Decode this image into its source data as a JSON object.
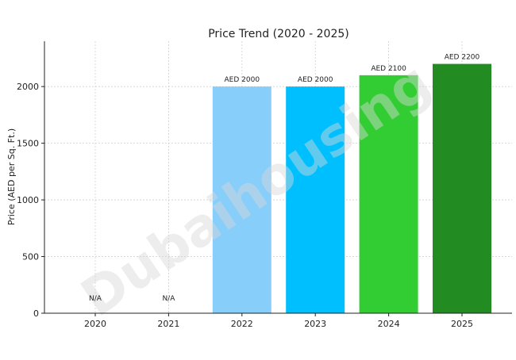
{
  "chart_data": {
    "type": "bar",
    "title": "Price Trend (2020 - 2025)",
    "xlabel": "",
    "ylabel": "Price (AED per Sq. Ft.)",
    "ylim": [
      0,
      2400
    ],
    "yticks": [
      0,
      500,
      1000,
      1500,
      2000
    ],
    "grid": true,
    "legend": "none",
    "categories": [
      "2020",
      "2021",
      "2022",
      "2023",
      "2024",
      "2025"
    ],
    "values": [
      null,
      null,
      2000,
      2000,
      2100,
      2200
    ],
    "data_labels": [
      "N/A",
      "N/A",
      "AED 2000",
      "AED 2000",
      "AED 2100",
      "AED 2200"
    ],
    "bar_colors": [
      "#87cefa",
      "#87cefa",
      "#87cefa",
      "#00bfff",
      "#32cd32",
      "#228b22"
    ]
  },
  "watermark": {
    "text": "Dubaihousing",
    "color": "#d9d9d9"
  }
}
